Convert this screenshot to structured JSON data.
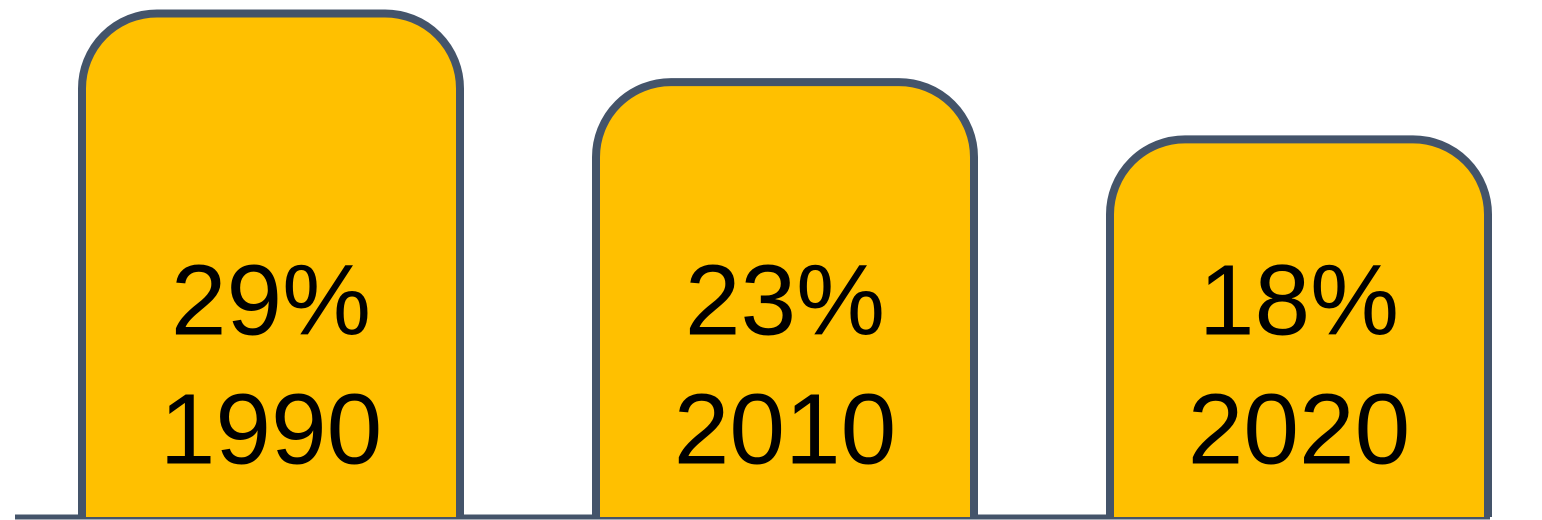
{
  "chart_data": {
    "type": "bar",
    "categories": [
      "1990",
      "2010",
      "2020"
    ],
    "values": [
      29,
      23,
      18
    ],
    "value_labels": [
      "29%",
      "23%",
      "18%"
    ],
    "color": "#ffc000",
    "ylim": [
      -15,
      30
    ]
  }
}
